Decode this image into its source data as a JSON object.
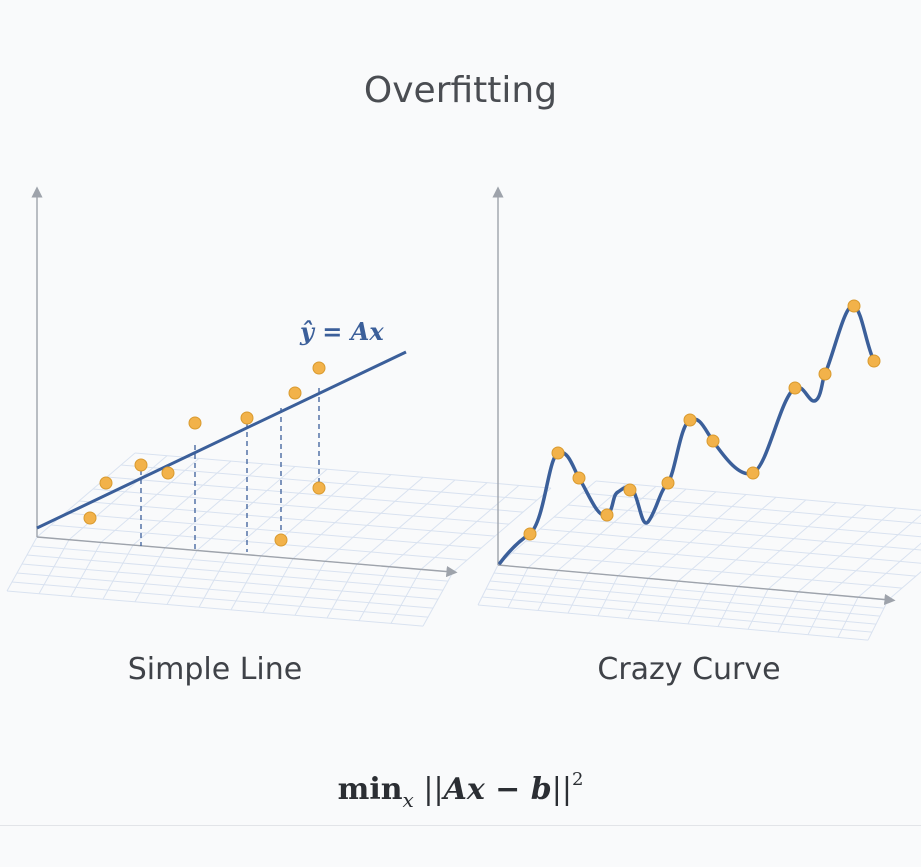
{
  "title": "Overfitting",
  "left_panel": {
    "label": "Simple Line",
    "equation": "ŷ = Ax",
    "points": [
      [
        90,
        518
      ],
      [
        106,
        483
      ],
      [
        141,
        465
      ],
      [
        168,
        473
      ],
      [
        195,
        423
      ],
      [
        247,
        418
      ],
      [
        281,
        540
      ],
      [
        295,
        393
      ],
      [
        319,
        368
      ],
      [
        319,
        488
      ]
    ]
  },
  "right_panel": {
    "label": "Crazy Curve",
    "points": [
      [
        530,
        534
      ],
      [
        558,
        453
      ],
      [
        579,
        478
      ],
      [
        607,
        515
      ],
      [
        630,
        490
      ],
      [
        668,
        483
      ],
      [
        690,
        420
      ],
      [
        713,
        441
      ],
      [
        753,
        473
      ],
      [
        795,
        388
      ],
      [
        825,
        374
      ],
      [
        854,
        306
      ],
      [
        874,
        361
      ]
    ]
  },
  "formula": {
    "prefix": "min",
    "subscript": "x",
    "open": " ||",
    "body": "Ax − b",
    "close": "||",
    "power": "2"
  },
  "colors": {
    "line": "#3b5f9a",
    "point": "#f2b24a",
    "point_stroke": "#d99a2e",
    "axis": "#9ea3ab",
    "grid": "#d6e0ef"
  }
}
